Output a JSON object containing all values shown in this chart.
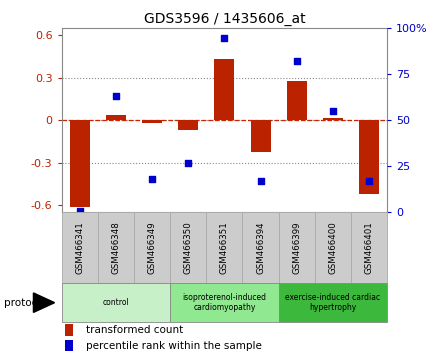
{
  "title": "GDS3596 / 1435606_at",
  "samples": [
    "GSM466341",
    "GSM466348",
    "GSM466349",
    "GSM466350",
    "GSM466351",
    "GSM466394",
    "GSM466399",
    "GSM466400",
    "GSM466401"
  ],
  "transformed_count": [
    -0.61,
    0.04,
    -0.02,
    -0.07,
    0.43,
    -0.22,
    0.28,
    0.02,
    -0.52
  ],
  "percentile_rank": [
    1,
    63,
    18,
    27,
    95,
    17,
    82,
    55,
    17
  ],
  "groups": [
    {
      "label": "control",
      "start": 0,
      "end": 3,
      "color": "#c8f0c8"
    },
    {
      "label": "isoproterenol-induced\ncardiomyopathy",
      "start": 3,
      "end": 6,
      "color": "#90e890"
    },
    {
      "label": "exercise-induced cardiac\nhypertrophy",
      "start": 6,
      "end": 9,
      "color": "#3cb83c"
    }
  ],
  "bar_color": "#bb2200",
  "dot_color": "#0000cc",
  "zero_line_color": "#cc2200",
  "grid_color": "#888888",
  "ylim_left": [
    -0.65,
    0.65
  ],
  "ylim_right": [
    0,
    100
  ],
  "yticks_left": [
    -0.6,
    -0.3,
    0.0,
    0.3,
    0.6
  ],
  "yticks_right": [
    0,
    25,
    50,
    75,
    100
  ],
  "ytick_labels_left": [
    "-0.6",
    "-0.3",
    "0",
    "0.3",
    "0.6"
  ],
  "ytick_labels_right": [
    "0",
    "25",
    "50",
    "75",
    "100%"
  ],
  "protocol_label": "protocol",
  "legend_bar_label": "transformed count",
  "legend_dot_label": "percentile rank within the sample",
  "tick_box_color": "#cccccc",
  "tick_box_border": "#aaaaaa",
  "bg_color": "#ffffff"
}
